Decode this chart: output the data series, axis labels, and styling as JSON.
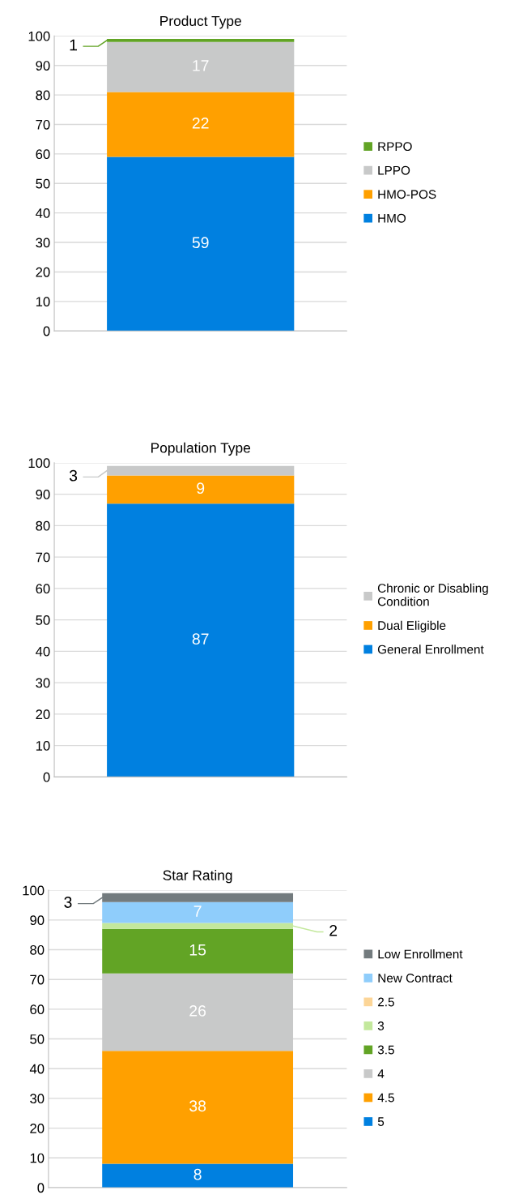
{
  "chart_data": [
    {
      "type": "bar",
      "title": "Product Type",
      "categories": [
        null
      ],
      "stacked": true,
      "ylim": [
        0,
        100
      ],
      "yticks": [
        0,
        10,
        20,
        30,
        40,
        50,
        60,
        70,
        80,
        90,
        100
      ],
      "grid": "y",
      "legend": "right",
      "series": [
        {
          "name": "HMO",
          "color": "#0080e0",
          "values": [
            59
          ],
          "value_labels": [
            "59"
          ]
        },
        {
          "name": "HMO-POS",
          "color": "#ffa000",
          "values": [
            22
          ],
          "value_labels": [
            "22"
          ]
        },
        {
          "name": "LPPO",
          "color": "#c8c9c9",
          "values": [
            17
          ],
          "value_labels": [
            "17"
          ]
        },
        {
          "name": "RPPO",
          "color": "#62a425",
          "values": [
            1
          ],
          "value_labels": [
            "1"
          ]
        }
      ]
    },
    {
      "type": "bar",
      "title": "Population Type",
      "categories": [
        null
      ],
      "stacked": true,
      "ylim": [
        0,
        100
      ],
      "yticks": [
        0,
        10,
        20,
        30,
        40,
        50,
        60,
        70,
        80,
        90,
        100
      ],
      "grid": "y",
      "legend": "right",
      "series": [
        {
          "name": "General Enrollment",
          "color": "#0080e0",
          "values": [
            87
          ],
          "value_labels": [
            "87"
          ]
        },
        {
          "name": "Dual Eligible",
          "color": "#ffa000",
          "values": [
            9
          ],
          "value_labels": [
            "9"
          ]
        },
        {
          "name": "Chronic or Disabling Condition",
          "color": "#c8c9c9",
          "values": [
            3
          ],
          "value_labels": [
            "3"
          ]
        }
      ]
    },
    {
      "type": "bar",
      "title": "Star Rating",
      "categories": [
        null
      ],
      "stacked": true,
      "ylim": [
        0,
        100
      ],
      "yticks": [
        0,
        10,
        20,
        30,
        40,
        50,
        60,
        70,
        80,
        90,
        100
      ],
      "grid": "y",
      "legend": "right",
      "series": [
        {
          "name": "5",
          "color": "#0080e0",
          "values": [
            8
          ],
          "value_labels": [
            "8"
          ]
        },
        {
          "name": "4.5",
          "color": "#ffa000",
          "values": [
            38
          ],
          "value_labels": [
            "38"
          ]
        },
        {
          "name": "4",
          "color": "#c8c9c9",
          "values": [
            26
          ],
          "value_labels": [
            "26"
          ]
        },
        {
          "name": "3.5",
          "color": "#62a425",
          "values": [
            15
          ],
          "value_labels": [
            "15"
          ]
        },
        {
          "name": "3",
          "color": "#c3e89c",
          "values": [
            2
          ],
          "value_labels": [
            "2"
          ]
        },
        {
          "name": "2.5",
          "color": "#fcd597",
          "values": [
            0
          ],
          "value_labels": [
            null
          ]
        },
        {
          "name": "New Contract",
          "color": "#8fcdfb",
          "values": [
            7
          ],
          "value_labels": [
            "7"
          ]
        },
        {
          "name": "Low Enrollment",
          "color": "#737b7e",
          "values": [
            3
          ],
          "value_labels": [
            "3"
          ]
        }
      ]
    }
  ]
}
